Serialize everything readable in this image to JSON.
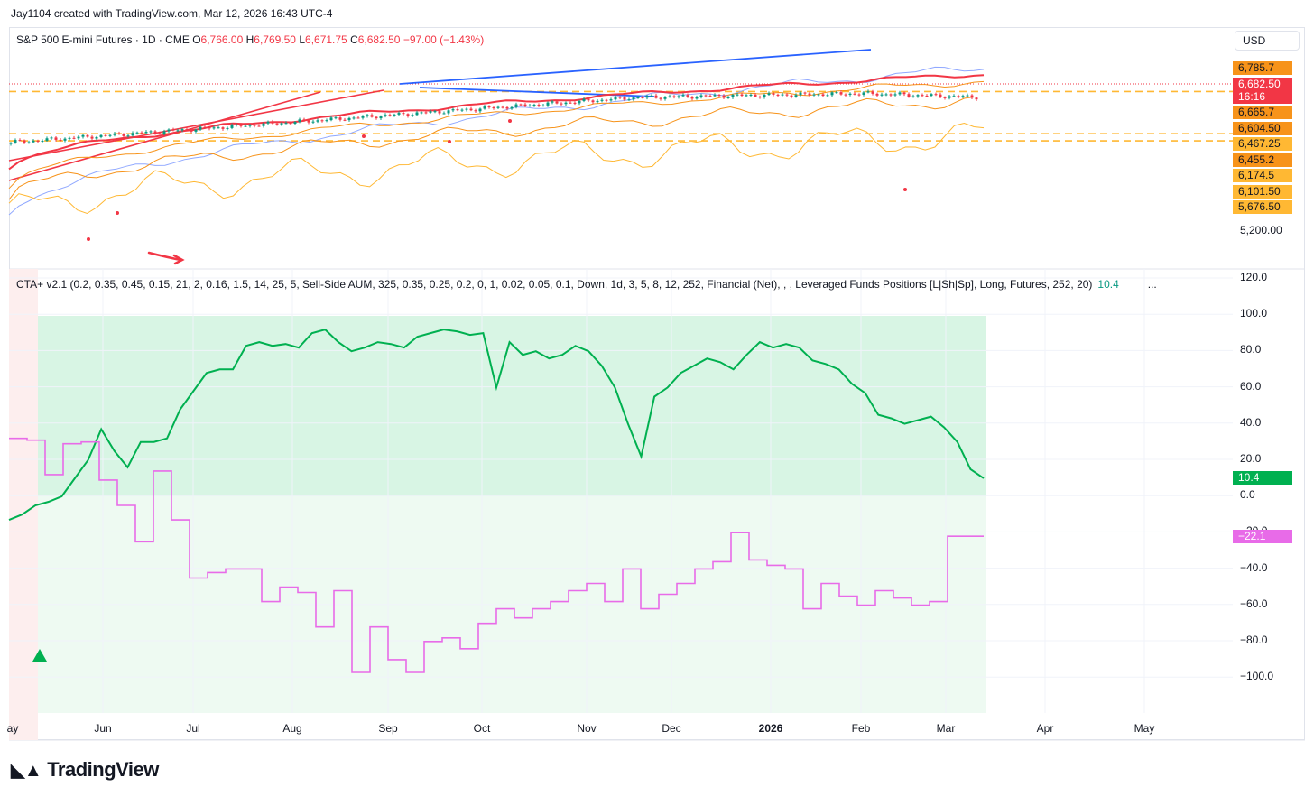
{
  "credit": "Jay1104 created with TradingView.com, Mar 12, 2026 16:43 UTC-4",
  "symbol": {
    "name": "S&P 500 E-mini Futures · 1D · CME",
    "o_label": "O",
    "o": "6,766.00",
    "h_label": "H",
    "h": "6,769.50",
    "l_label": "L",
    "l": "6,671.75",
    "c_label": "C",
    "c": "6,682.50",
    "change": "−97.00 (−1.43%)"
  },
  "currency": "USD",
  "price_tags": [
    {
      "text": "6,785.7",
      "bg": "#f7931a"
    },
    {
      "text": "6,682.50",
      "bg": "#f23645",
      "fg": "#ffffff"
    },
    {
      "text": "16:16",
      "bg": "#f23645",
      "fg": "#ffffff"
    },
    {
      "text": "6,665.7",
      "bg": "#f7931a"
    },
    {
      "text": "6,604.50",
      "bg": "#f7931a"
    },
    {
      "text": "6,467.25",
      "bg": "#ffb833"
    },
    {
      "text": "6,455.2",
      "bg": "#f7931a"
    },
    {
      "text": "6,174.5",
      "bg": "#ffb833"
    },
    {
      "text": "6,101.50",
      "bg": "#ffb833"
    },
    {
      "text": "5,676.50",
      "bg": "#ffb833"
    }
  ],
  "price_axis_label": "5,200.00",
  "indicator": {
    "title": "CTA+ v2.1 (0.2, 0.35, 0.45, 0.15, 21, 2, 0.16, 1.5, 14, 25, 5, Sell-Side AUM, 325, 0.35, 0.25, 0.2, 0, 1, 0.02, 0.05, 0.1, Down, 1d, 3, 5, 8, 12, 252, Financial (Net), , , Leveraged Funds Positions [L|Sh|Sp], Long, Futures, 252, 20)",
    "value": "10.4",
    "more": "...",
    "last_green": "10.4",
    "last_pink": "−22.1"
  },
  "indicator_axis_labels": [
    "120.0",
    "100.0",
    "80.0",
    "60.0",
    "40.0",
    "20.0",
    "0.0",
    "−20.0",
    "−40.0",
    "−60.0",
    "−80.0",
    "−100.0"
  ],
  "x_labels": [
    "ay",
    "Jun",
    "Jul",
    "Aug",
    "Sep",
    "Oct",
    "Nov",
    "Dec",
    "2026",
    "Feb",
    "Mar",
    "Apr",
    "May"
  ],
  "footer_logo": "TradingView",
  "colors": {
    "green": "#00b050",
    "pink": "#e86be8",
    "red": "#f23645",
    "orange": "#f7931a",
    "gold": "#ffb833",
    "blue": "#2962ff"
  },
  "chart_data": {
    "type": "line",
    "panes": [
      {
        "name": "S&P 500 E-mini Futures",
        "ylim": [
          5100,
          6900
        ]
      },
      {
        "name": "CTA+ v2.1",
        "ylim": [
          -120,
          120
        ],
        "series": [
          {
            "color": "green",
            "values": [
              -13,
              -10,
              -5,
              -3,
              0,
              10,
              20,
              37,
              25,
              16,
              30,
              30,
              32,
              48,
              58,
              68,
              70,
              70,
              83,
              85,
              83,
              84,
              82,
              90,
              92,
              85,
              80,
              82,
              85,
              84,
              82,
              88,
              90,
              92,
              91,
              89,
              90,
              60,
              85,
              78,
              80,
              76,
              78,
              83,
              80,
              72,
              60,
              40,
              22,
              55,
              60,
              68,
              72,
              76,
              74,
              70,
              78,
              85,
              82,
              84,
              82,
              75,
              73,
              70,
              62,
              57,
              45,
              43,
              40,
              42,
              44,
              38,
              30,
              15,
              10
            ]
          },
          {
            "color": "pink",
            "values": [
              32,
              31,
              12,
              29,
              30,
              9,
              -5,
              -25,
              14,
              -13,
              -45,
              -42,
              -40,
              -40,
              -58,
              -50,
              -53,
              -72,
              -52,
              -97,
              -72,
              -90,
              -97,
              -80,
              -78,
              -84,
              -70,
              -62,
              -67,
              -62,
              -58,
              -52,
              -48,
              -58,
              -40,
              -62,
              -54,
              -48,
              -40,
              -36,
              -20,
              -35,
              -38,
              -40,
              -62,
              -48,
              -55,
              -60,
              -52,
              -56,
              -60,
              -58,
              -22,
              -22,
              -22
            ]
          }
        ]
      }
    ],
    "x_ticks": [
      "ay",
      "Jun",
      "Jul",
      "Aug",
      "Sep",
      "Oct",
      "Nov",
      "Dec",
      "2026",
      "Feb",
      "Mar",
      "Apr",
      "May"
    ]
  }
}
